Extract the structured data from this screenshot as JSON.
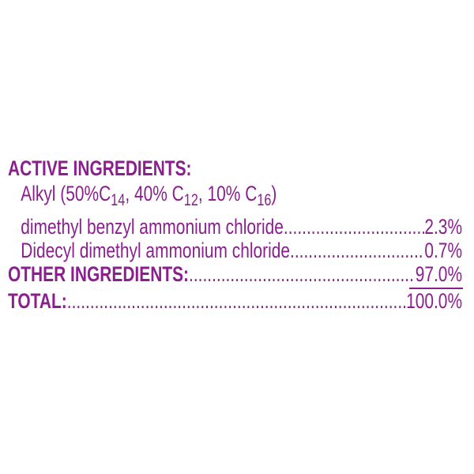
{
  "active_heading": "ACTIVE INGREDIENTS:",
  "alkyl_line": {
    "prefix": "Alkyl (50%C",
    "sub1": "14",
    "mid1": ", 40% C",
    "sub2": "12",
    "mid2": ", 10% C",
    "sub3": "16",
    "suffix": ")"
  },
  "ingredients": [
    {
      "name": "dimethyl benzyl ammonium chloride",
      "value": "2.3%"
    },
    {
      "name": "Didecyl dimethyl ammonium chloride",
      "value": "0.7%"
    }
  ],
  "other": {
    "label": "OTHER INGREDIENTS:",
    "value": "97.0%"
  },
  "total": {
    "label": "TOTAL:",
    "value": "100.0%"
  },
  "colors": {
    "text": "#8a1f8e",
    "background": "#ffffff"
  }
}
